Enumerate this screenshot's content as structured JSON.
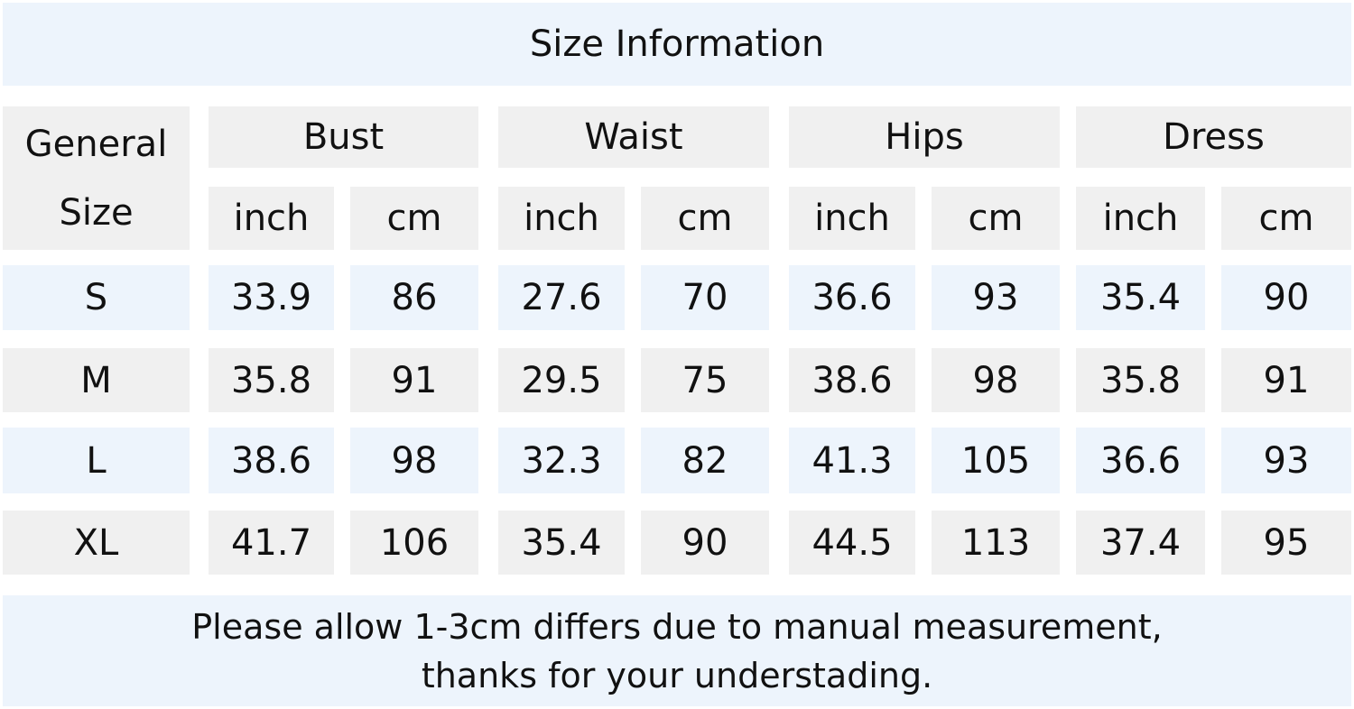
{
  "title": "Size Information",
  "general_size_label": [
    "General",
    "Size"
  ],
  "groups": [
    "Bust",
    "Waist",
    "Hips",
    "Dress"
  ],
  "units": [
    "inch",
    "cm"
  ],
  "rows": [
    {
      "size": "S",
      "values": [
        "33.9",
        "86",
        "27.6",
        "70",
        "36.6",
        "93",
        "35.4",
        "90"
      ]
    },
    {
      "size": "M",
      "values": [
        "35.8",
        "91",
        "29.5",
        "75",
        "38.6",
        "98",
        "35.8",
        "91"
      ]
    },
    {
      "size": "L",
      "values": [
        "38.6",
        "98",
        "32.3",
        "82",
        "41.3",
        "105",
        "36.6",
        "93"
      ]
    },
    {
      "size": "XL",
      "values": [
        "41.7",
        "106",
        "35.4",
        "90",
        "44.5",
        "113",
        "37.4",
        "95"
      ]
    }
  ],
  "footer": [
    "Please allow 1-3cm differs due to manual measurement,",
    "thanks for your understading."
  ],
  "colors": {
    "header_bg": "#f0f0f0",
    "blue_bg": "#edf4fc"
  }
}
